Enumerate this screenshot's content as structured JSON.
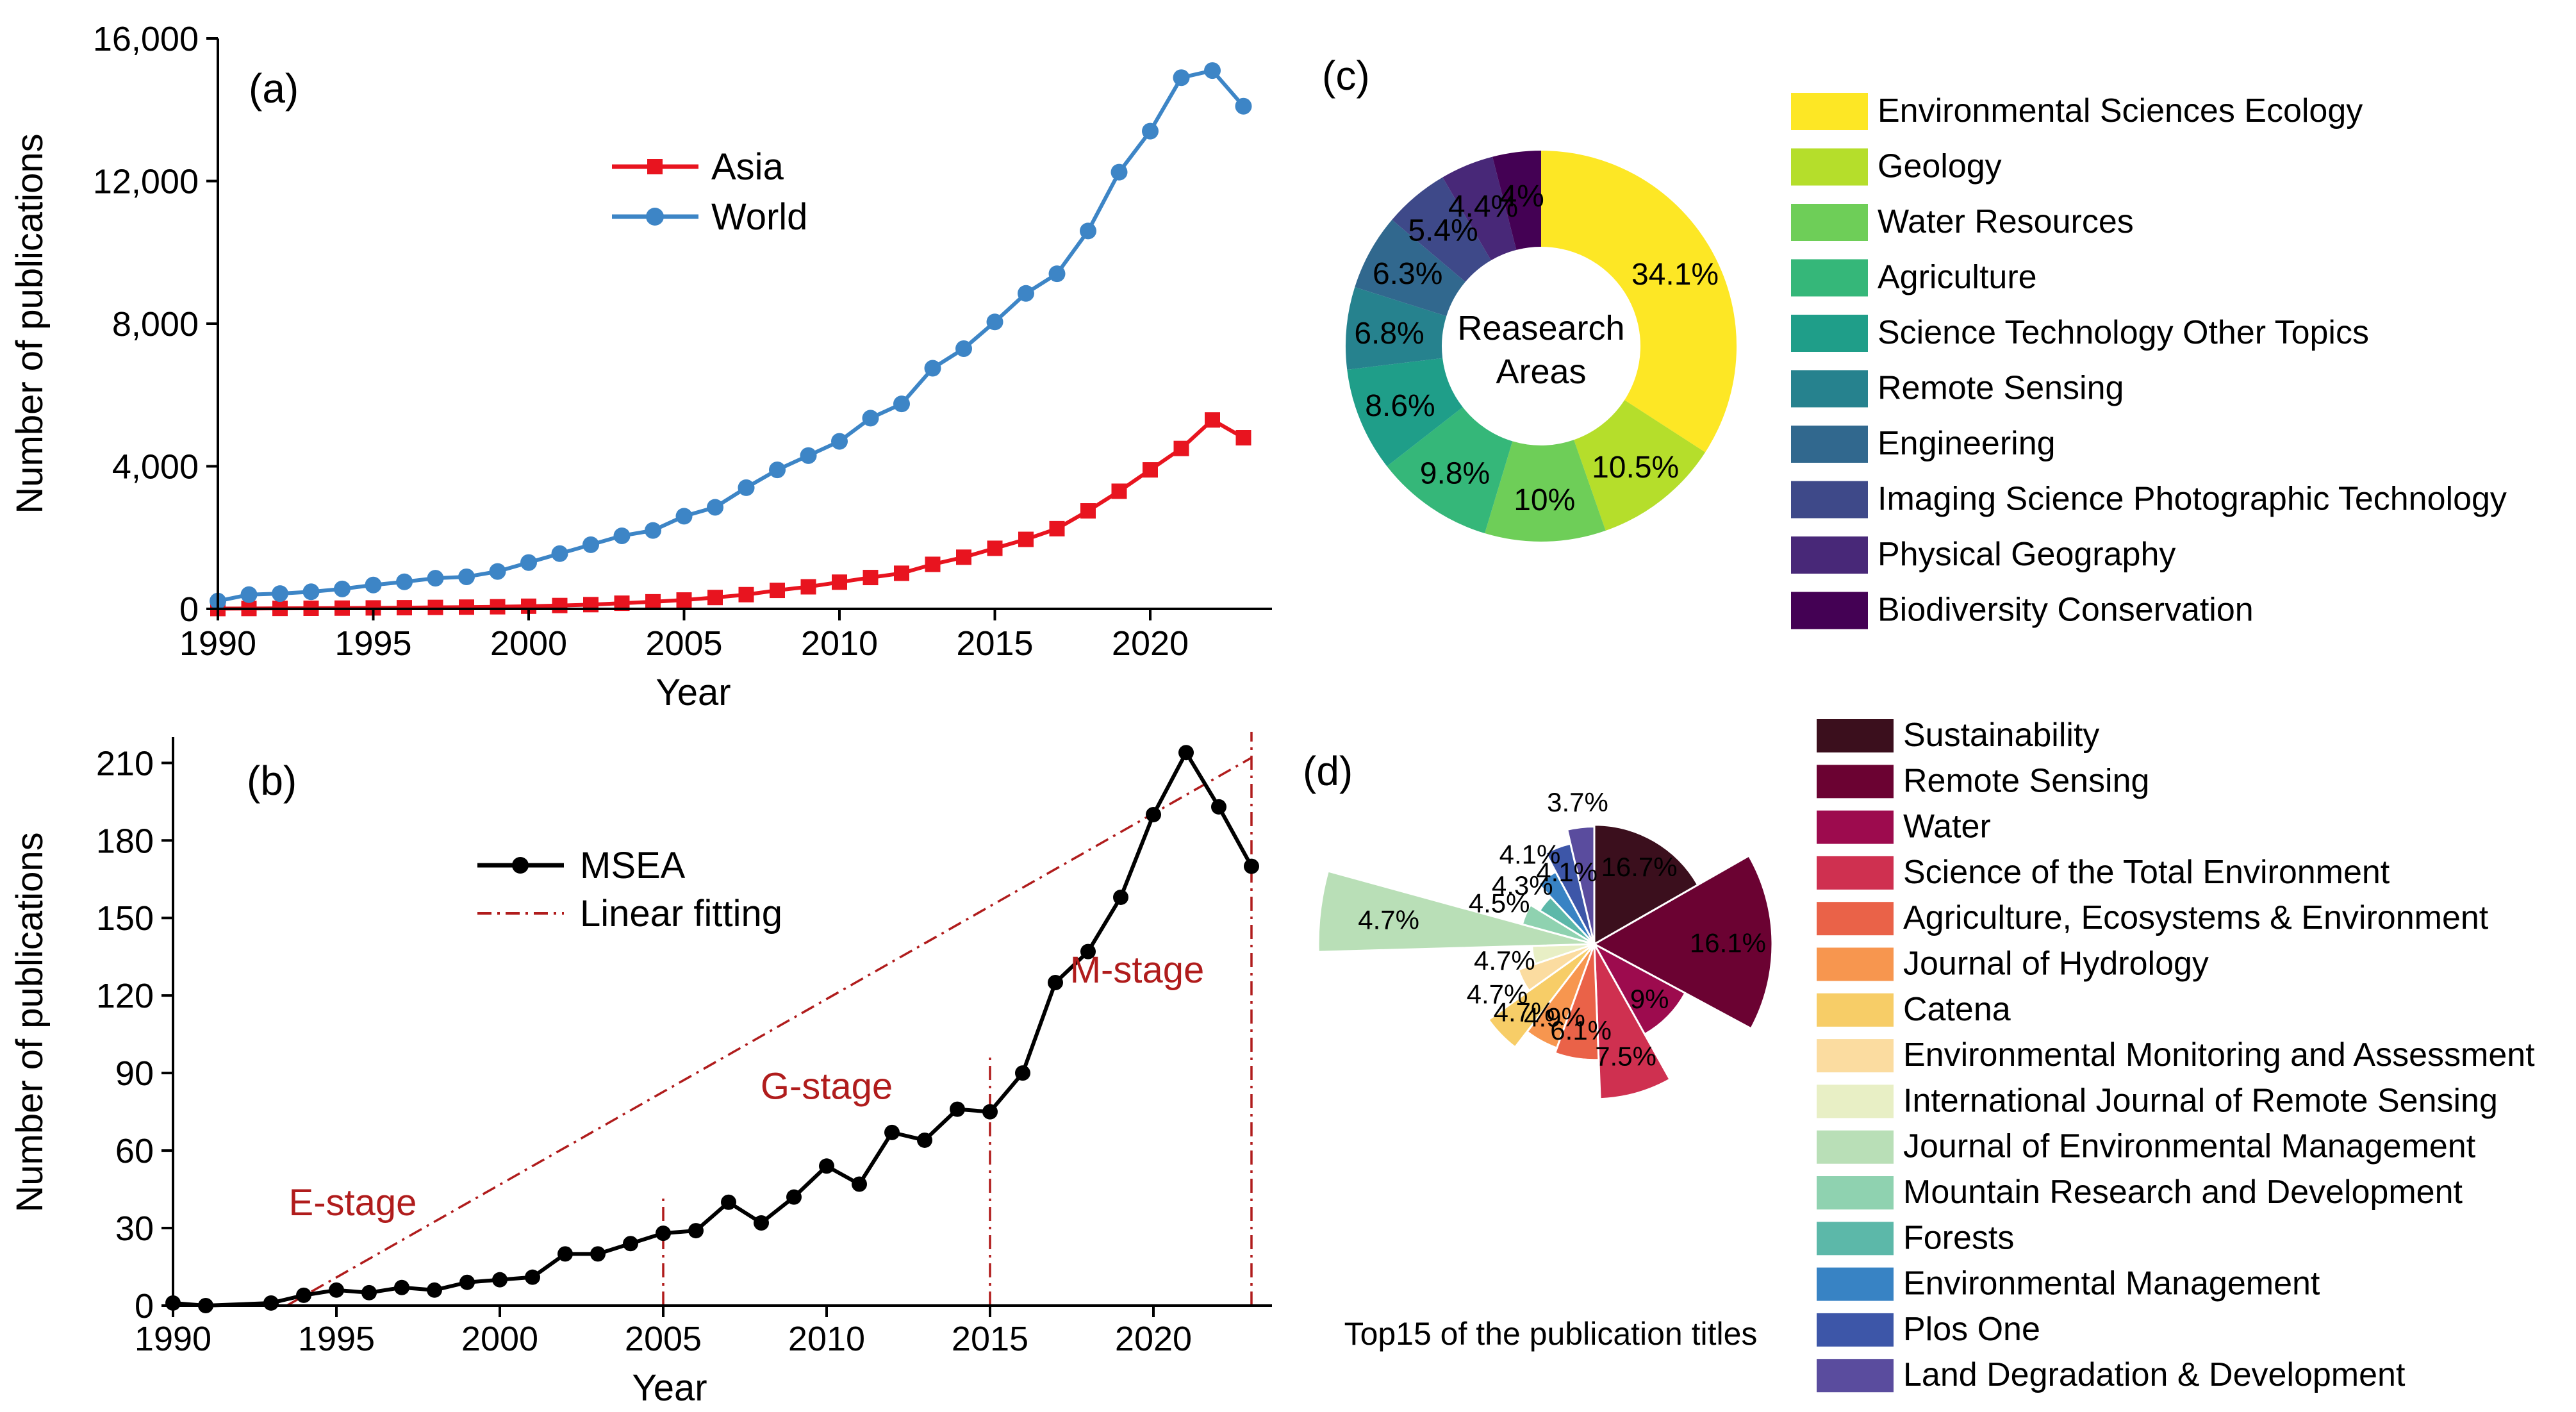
{
  "colors": {
    "asia": "#e8141f",
    "world": "#3d85c6",
    "msea": "#000000",
    "fit": "#b01c1c",
    "stage": "#b01c1c"
  },
  "chart_data": [
    {
      "panel": "(a)",
      "type": "line",
      "xlabel": "Year",
      "ylabel": "Number of publications",
      "xlim": [
        1990,
        2023
      ],
      "ylim": [
        0,
        16000
      ],
      "x_ticks": [
        1990,
        1995,
        2000,
        2005,
        2010,
        2015,
        2020
      ],
      "x_tick_labels": [
        "1990",
        "1995",
        "2000",
        "2005",
        "2010",
        "2015",
        "2020"
      ],
      "y_ticks": [
        0,
        4000,
        8000,
        12000,
        16000
      ],
      "y_tick_labels": [
        "0",
        "4,000",
        "8,000",
        "12,000",
        "16,000"
      ],
      "legend": "upper-left",
      "x": [
        1990,
        1991,
        1992,
        1993,
        1994,
        1995,
        1996,
        1997,
        1998,
        1999,
        2000,
        2001,
        2002,
        2003,
        2004,
        2005,
        2006,
        2007,
        2008,
        2009,
        2010,
        2011,
        2012,
        2013,
        2014,
        2015,
        2016,
        2017,
        2018,
        2019,
        2020,
        2021,
        2022,
        2023
      ],
      "series": [
        {
          "name": "Asia",
          "marker": "square",
          "color": "#e8141f",
          "values": [
            10,
            12,
            15,
            18,
            22,
            28,
            34,
            42,
            50,
            60,
            75,
            95,
            120,
            160,
            200,
            250,
            320,
            400,
            520,
            620,
            750,
            880,
            1000,
            1250,
            1450,
            1700,
            1950,
            2250,
            2750,
            3300,
            3900,
            4500,
            5300,
            4800
          ]
        },
        {
          "name": "World",
          "marker": "circle",
          "color": "#3d85c6",
          "values": [
            220,
            400,
            430,
            480,
            560,
            670,
            760,
            860,
            900,
            1050,
            1300,
            1550,
            1800,
            2050,
            2200,
            2600,
            2850,
            3400,
            3900,
            4300,
            4700,
            5350,
            5750,
            6750,
            7300,
            8050,
            8850,
            9400,
            10600,
            12250,
            13400,
            14900,
            15100,
            14100
          ]
        }
      ]
    },
    {
      "panel": "(b)",
      "type": "line",
      "xlabel": "Year",
      "ylabel": "Number of publications",
      "xlim": [
        1990,
        2023
      ],
      "ylim": [
        0,
        220
      ],
      "x_ticks": [
        1990,
        1995,
        2000,
        2005,
        2010,
        2015,
        2020
      ],
      "x_tick_labels": [
        "1990",
        "1995",
        "2000",
        "2005",
        "2010",
        "2015",
        "2020"
      ],
      "y_ticks": [
        0,
        30,
        60,
        90,
        120,
        150,
        180,
        210
      ],
      "y_tick_labels": [
        "0",
        "30",
        "60",
        "90",
        "120",
        "150",
        "180",
        "210"
      ],
      "x": [
        1990,
        1991,
        1993,
        1994,
        1995,
        1996,
        1997,
        1998,
        1999,
        2000,
        2001,
        2002,
        2003,
        2004,
        2005,
        2006,
        2007,
        2008,
        2009,
        2010,
        2011,
        2012,
        2013,
        2014,
        2015,
        2016,
        2017,
        2018,
        2019,
        2020,
        2021,
        2022,
        2023
      ],
      "series": [
        {
          "name": "MSEA",
          "marker": "circle",
          "color": "#000000",
          "values": [
            1,
            0,
            1,
            4,
            6,
            5,
            7,
            6,
            9,
            10,
            11,
            20,
            20,
            24,
            28,
            29,
            40,
            32,
            42,
            54,
            47,
            67,
            64,
            76,
            75,
            90,
            125,
            137,
            158,
            190,
            214,
            193,
            170
          ]
        }
      ],
      "fit": {
        "name": "Linear fitting",
        "x": [
          1990,
          2023
        ],
        "y": [
          -25,
          212
        ]
      },
      "stages": [
        {
          "label": "E-stage",
          "x": 1995.5,
          "y": 35
        },
        {
          "label": "G-stage",
          "x": 2010,
          "y": 80
        },
        {
          "label": "M-stage",
          "x": 2019.5,
          "y": 125
        }
      ],
      "stage_lines": [
        {
          "x": 1990,
          "ymax": 20
        },
        {
          "x": 2005,
          "ymax": 42
        },
        {
          "x": 2015,
          "ymax": 98
        },
        {
          "x": 2023,
          "ymax": 222
        }
      ]
    },
    {
      "panel": "(c)",
      "type": "pie",
      "center_label": [
        "Reasearch",
        "Areas"
      ],
      "labels": [
        "Environmental Sciences Ecology",
        "Geology",
        "Water Resources",
        "Agriculture",
        "Science Technology Other Topics",
        "Remote Sensing",
        "Engineering",
        "Imaging Science Photographic Technology",
        "Physical Geography",
        "Biodiversity Conservation"
      ],
      "values": [
        34.1,
        10.5,
        10,
        9.8,
        8.6,
        6.8,
        6.3,
        5.4,
        4.4,
        4
      ],
      "value_labels": [
        "34.1%",
        "10.5%",
        "10%",
        "9.8%",
        "8.6%",
        "6.8%",
        "6.3%",
        "5.4%",
        "4.4%",
        "4%"
      ],
      "colors": [
        "#fde725",
        "#b5de2b",
        "#6ece58",
        "#35b779",
        "#1f9e89",
        "#26828e",
        "#31688e",
        "#3e4989",
        "#482878",
        "#440154"
      ]
    },
    {
      "panel": "(d)",
      "type": "pie",
      "subtype": "nightingale-rose",
      "title": "Top15 of the publication titles",
      "labels": [
        "Sustainability",
        "Remote Sensing",
        "Water",
        "Science of the Total Environment",
        "Agriculture, Ecosystems & Environment",
        "Journal of Hydrology",
        "Catena",
        "Environmental Monitoring and Assessment",
        "International Journal of Remote Sensing",
        "Journal of Environmental Management",
        "Mountain Research and Development",
        "Forests",
        "Environmental Management",
        "Plos One",
        "Land Degradation & Development"
      ],
      "values": [
        16.7,
        16.1,
        9,
        7.5,
        6.1,
        4.9,
        4.7,
        4.7,
        4.7,
        4.7,
        4.5,
        4.3,
        4.1,
        4.1,
        3.7
      ],
      "radii": [
        0.67,
        1.0,
        0.58,
        0.87,
        0.65,
        0.62,
        0.73,
        0.45,
        0.35,
        1.55,
        0.42,
        0.36,
        0.46,
        0.58,
        0.66
      ],
      "value_labels": [
        "16.7%",
        "16.1%",
        "9%",
        "7.5%",
        "6.1%",
        "4.9%",
        "4.7%",
        "4.7%",
        "4.7%",
        "4.7%",
        "4.5%",
        "4.3%",
        "4.1%",
        "4.1%",
        "3.7%"
      ],
      "colors": [
        "#3b0f1d",
        "#6b0232",
        "#9d0b4e",
        "#cf3050",
        "#ea6248",
        "#f7964f",
        "#f7cd67",
        "#fbdca0",
        "#e8efc5",
        "#b9dfb7",
        "#8fd2b0",
        "#5cb8a9",
        "#3883c4",
        "#3d56a8",
        "#5a4c9e"
      ]
    }
  ]
}
